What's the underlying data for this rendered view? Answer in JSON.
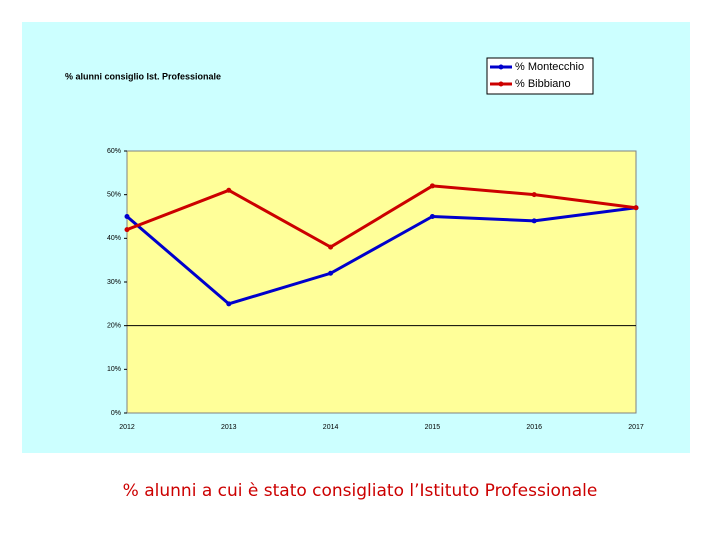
{
  "chart_data": {
    "type": "line",
    "title": "% alunni consiglio Ist. Professionale",
    "categories": [
      "2012",
      "2013",
      "2014",
      "2015",
      "2016",
      "2017"
    ],
    "series": [
      {
        "name": "% Montecchio",
        "color": "#0000cc",
        "values": [
          45,
          25,
          32,
          45,
          44,
          47
        ]
      },
      {
        "name": "% Bibbiano",
        "color": "#cc0000",
        "values": [
          42,
          51,
          38,
          52,
          50,
          47
        ]
      }
    ],
    "ylim": [
      0,
      60
    ],
    "yticks": [
      {
        "value": 0,
        "label": "0%"
      },
      {
        "value": 10,
        "label": "10%"
      },
      {
        "value": 20,
        "label": "20%"
      },
      {
        "value": 30,
        "label": "30%"
      },
      {
        "value": 40,
        "label": "40%"
      },
      {
        "value": 50,
        "label": "50%"
      },
      {
        "value": 60,
        "label": "60%"
      }
    ],
    "hline": 20,
    "legend": "top-right"
  },
  "caption": "% alunni a cui è stato consigliato l’Istituto Professionale"
}
